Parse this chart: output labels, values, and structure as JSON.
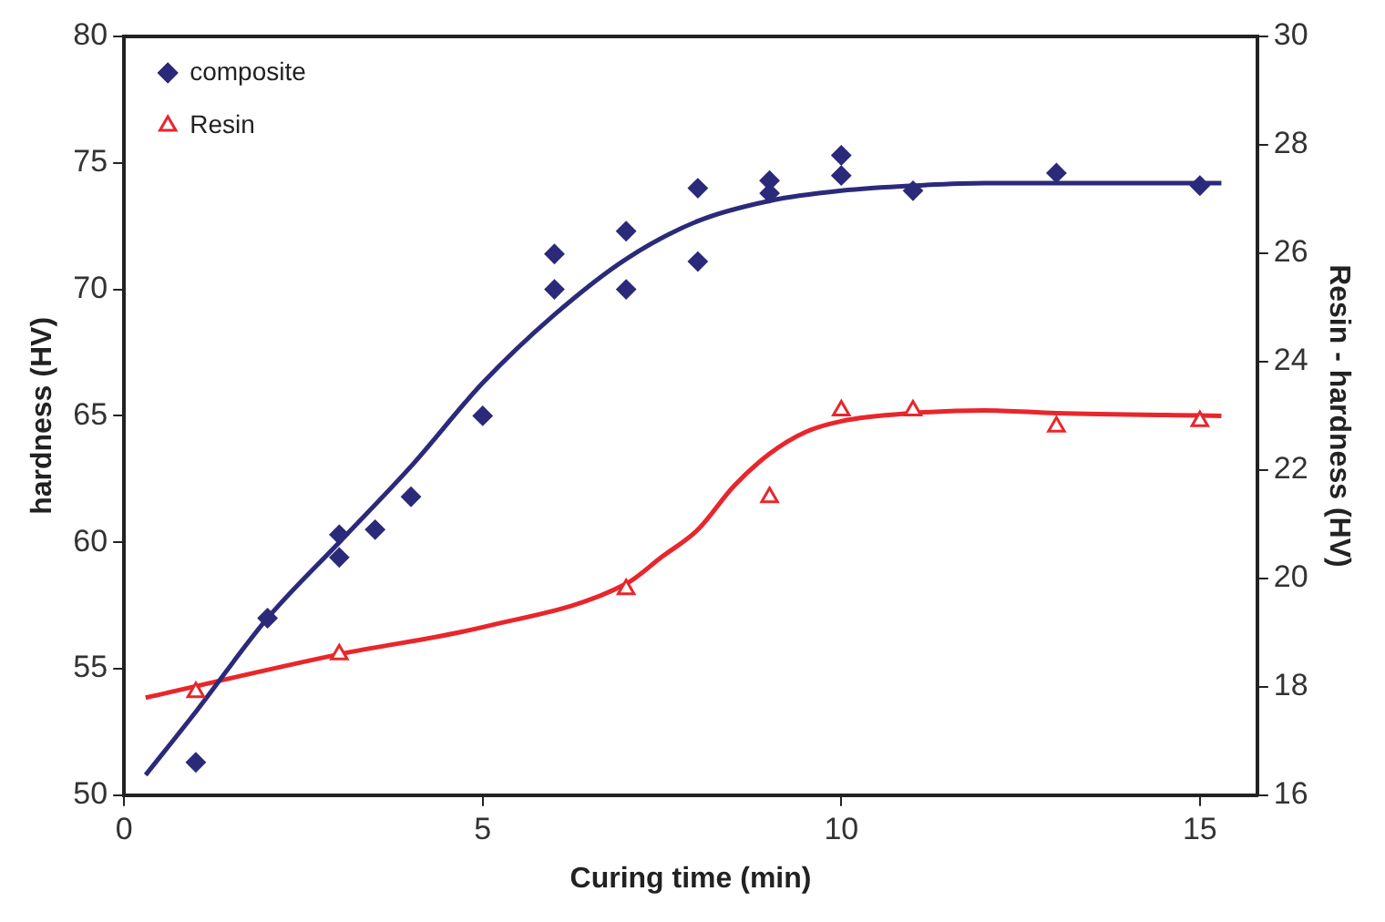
{
  "chart_data": {
    "type": "scatter",
    "xlabel": "Curing time (min)",
    "ylabel": "hardness (HV)",
    "y2label": "Resin - hardness (HV)",
    "xlim": [
      0,
      15.8
    ],
    "xticks": [
      0,
      5,
      10,
      15
    ],
    "ylim": [
      50,
      80
    ],
    "yticks": [
      50,
      55,
      60,
      65,
      70,
      75,
      80
    ],
    "y2lim": [
      16,
      30
    ],
    "y2ticks": [
      16,
      18,
      20,
      22,
      24,
      26,
      28,
      30
    ],
    "grid": false,
    "legend": "top left",
    "series": [
      {
        "name": "composite",
        "marker": "diamond",
        "color": "#2b2a7a",
        "x": [
          1,
          2,
          3,
          3,
          3.5,
          4,
          5,
          6,
          6,
          7,
          7,
          8,
          8,
          9,
          9,
          10,
          10,
          11,
          13,
          15
        ],
        "values": [
          51.3,
          57.0,
          60.3,
          59.4,
          60.5,
          61.8,
          65.0,
          71.4,
          70.0,
          72.3,
          70.0,
          74.0,
          71.1,
          74.3,
          73.8,
          75.3,
          74.5,
          73.9,
          74.6,
          74.1
        ]
      },
      {
        "name": "Resin",
        "marker": "triangle",
        "axis": "y2",
        "color": "#e8262b",
        "x": [
          1,
          3,
          7,
          9,
          10,
          11,
          13,
          15
        ],
        "values": [
          17.9,
          18.6,
          19.8,
          21.5,
          23.1,
          23.1,
          22.8,
          22.9
        ]
      },
      {
        "type": "line",
        "marker": "none",
        "color": "#2b2a7a",
        "x": [
          0.3,
          1,
          2,
          3,
          4,
          5,
          6,
          7,
          8,
          9,
          10,
          11,
          12,
          15.3
        ],
        "values": [
          50.8,
          53.3,
          57.0,
          60.0,
          63.0,
          66.3,
          69.0,
          71.2,
          72.7,
          73.5,
          73.9,
          74.1,
          74.2,
          74.2
        ]
      },
      {
        "type": "line",
        "marker": "none",
        "axis": "y2",
        "color": "#e8262b",
        "x": [
          0.3,
          3,
          5,
          7,
          7.5,
          8,
          8.5,
          9,
          9.5,
          10,
          11,
          12,
          13,
          15.3
        ],
        "values": [
          17.8,
          18.6,
          19.1,
          19.9,
          20.4,
          20.9,
          21.7,
          22.3,
          22.7,
          22.9,
          23.05,
          23.1,
          23.05,
          23.0
        ]
      }
    ]
  }
}
